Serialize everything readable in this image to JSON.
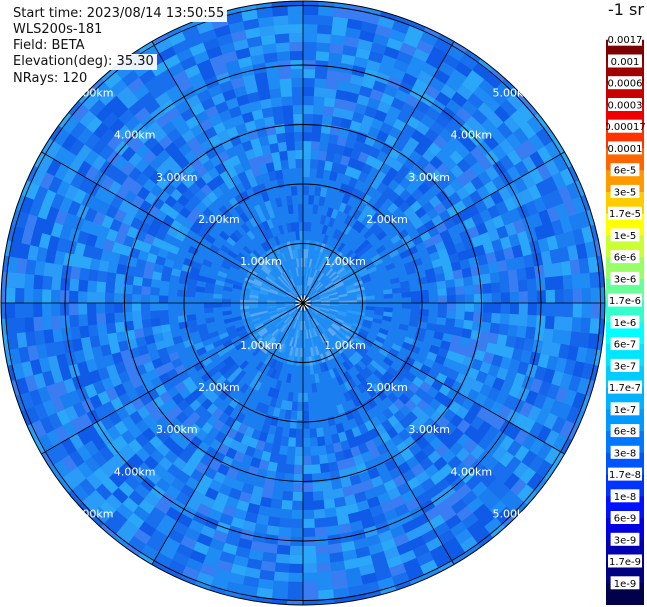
{
  "header": {
    "start_time": "Start time: 2023/08/14 13:50:55",
    "instrument": "WLS200s-181",
    "field": "Field: BETA",
    "elevation": "Elevation(deg): 35.30",
    "nrays": "NRays: 120"
  },
  "chart_data": {
    "type": "heatmap",
    "projection": "polar",
    "field": "BETA",
    "nrays": 120,
    "max_range_km": 6,
    "range_rings_km": [
      1,
      2,
      3,
      4,
      5
    ],
    "range_ring_labels": [
      "1.00km",
      "2.00km",
      "3.00km",
      "4.00km",
      "5.00km"
    ],
    "spokes_deg": [
      0,
      30,
      60,
      90,
      120,
      150,
      180,
      210,
      240,
      270,
      300,
      330
    ],
    "colorbar": {
      "unit": "-1 sr",
      "tick_labels": [
        "0.0017",
        "0.001",
        "0.0006",
        "0.0003",
        "0.00017",
        "0.0001",
        "6e-5",
        "3e-5",
        "1.7e-5",
        "1e-5",
        "6e-6",
        "3e-6",
        "1.7e-6",
        "1e-6",
        "6e-7",
        "3e-7",
        "1.7e-7",
        "1e-7",
        "6e-8",
        "3e-8",
        "1.7e-8",
        "1e-8",
        "6e-9",
        "3e-9",
        "1.7e-9",
        "1e-9"
      ],
      "colors": [
        "#ffffff",
        "#7f0000",
        "#a00000",
        "#c80000",
        "#ee0000",
        "#ff3300",
        "#ff6600",
        "#ff9900",
        "#ffcc00",
        "#ffff00",
        "#ccff33",
        "#99ff66",
        "#66ff99",
        "#33ffcc",
        "#00ffff",
        "#00e5ff",
        "#00ccff",
        "#00b2ff",
        "#0099ff",
        "#0077ff",
        "#0055ff",
        "#0033ff",
        "#0011ff",
        "#0000e0",
        "#0000b0",
        "#000080",
        "#00004a"
      ]
    },
    "grid": true,
    "legend_position": "right"
  }
}
